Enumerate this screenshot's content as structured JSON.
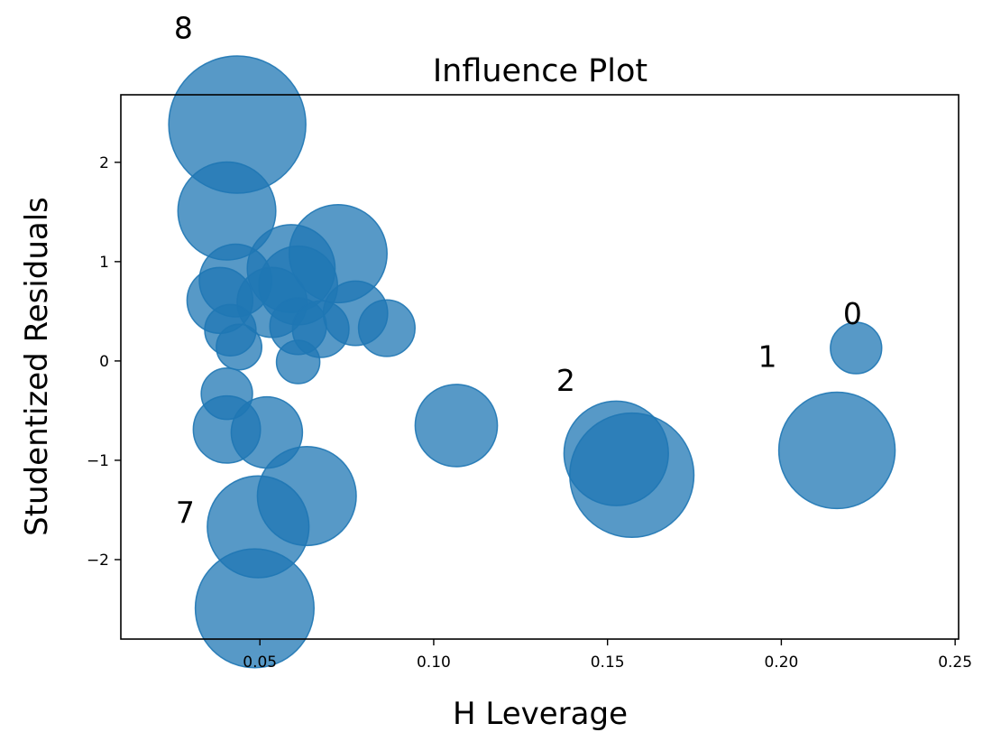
{
  "chart_data": {
    "type": "scatter",
    "title": "Influence Plot",
    "xlabel": "H Leverage",
    "ylabel": "Studentized Residuals",
    "xlim": [
      0.01,
      0.251
    ],
    "ylim": [
      -2.8,
      2.68
    ],
    "xticks": [
      0.05,
      0.1,
      0.15,
      0.2,
      0.25
    ],
    "xtick_labels": [
      "0.05",
      "0.10",
      "0.15",
      "0.20",
      "0.25"
    ],
    "yticks": [
      -2,
      -1,
      0,
      1,
      2
    ],
    "ytick_labels": [
      "−2",
      "−1",
      "0",
      "1",
      "2"
    ],
    "grid": false,
    "marker_color": "#1f77b4",
    "marker_opacity": 0.75,
    "note": "point_size is the relative bubble size (Cook's distance style influence)",
    "points": [
      {
        "x": 0.0435,
        "y": 2.38,
        "size": 1.0
      },
      {
        "x": 0.0405,
        "y": 1.51,
        "size": 0.51
      },
      {
        "x": 0.0725,
        "y": 1.08,
        "size": 0.51
      },
      {
        "x": 0.059,
        "y": 0.93,
        "size": 0.41
      },
      {
        "x": 0.061,
        "y": 0.76,
        "size": 0.33
      },
      {
        "x": 0.043,
        "y": 0.81,
        "size": 0.28
      },
      {
        "x": 0.0385,
        "y": 0.61,
        "size": 0.23
      },
      {
        "x": 0.0535,
        "y": 0.59,
        "size": 0.26
      },
      {
        "x": 0.0775,
        "y": 0.48,
        "size": 0.22
      },
      {
        "x": 0.061,
        "y": 0.35,
        "size": 0.17
      },
      {
        "x": 0.0675,
        "y": 0.32,
        "size": 0.17
      },
      {
        "x": 0.0865,
        "y": 0.33,
        "size": 0.17
      },
      {
        "x": 0.0415,
        "y": 0.31,
        "size": 0.14
      },
      {
        "x": 0.044,
        "y": 0.14,
        "size": 0.11
      },
      {
        "x": 0.061,
        "y": -0.01,
        "size": 0.1
      },
      {
        "x": 0.0405,
        "y": -0.33,
        "size": 0.14
      },
      {
        "x": 0.2215,
        "y": 0.13,
        "size": 0.14
      },
      {
        "x": 0.0405,
        "y": -0.69,
        "size": 0.24
      },
      {
        "x": 0.052,
        "y": -0.72,
        "size": 0.27
      },
      {
        "x": 0.1065,
        "y": -0.65,
        "size": 0.36
      },
      {
        "x": 0.1525,
        "y": -0.93,
        "size": 0.58
      },
      {
        "x": 0.157,
        "y": -1.15,
        "size": 0.82
      },
      {
        "x": 0.216,
        "y": -0.9,
        "size": 0.72
      },
      {
        "x": 0.0635,
        "y": -1.36,
        "size": 0.52
      },
      {
        "x": 0.0495,
        "y": -1.67,
        "size": 0.55
      },
      {
        "x": 0.0485,
        "y": -2.49,
        "size": 0.75
      }
    ],
    "annotations": [
      {
        "text": "8",
        "x": 0.028,
        "y": 3.25
      },
      {
        "text": "0",
        "x": 0.2205,
        "y": 0.37
      },
      {
        "text": "1",
        "x": 0.196,
        "y": -0.06
      },
      {
        "text": "2",
        "x": 0.138,
        "y": -0.3
      },
      {
        "text": "7",
        "x": 0.0285,
        "y": -1.63
      }
    ]
  }
}
